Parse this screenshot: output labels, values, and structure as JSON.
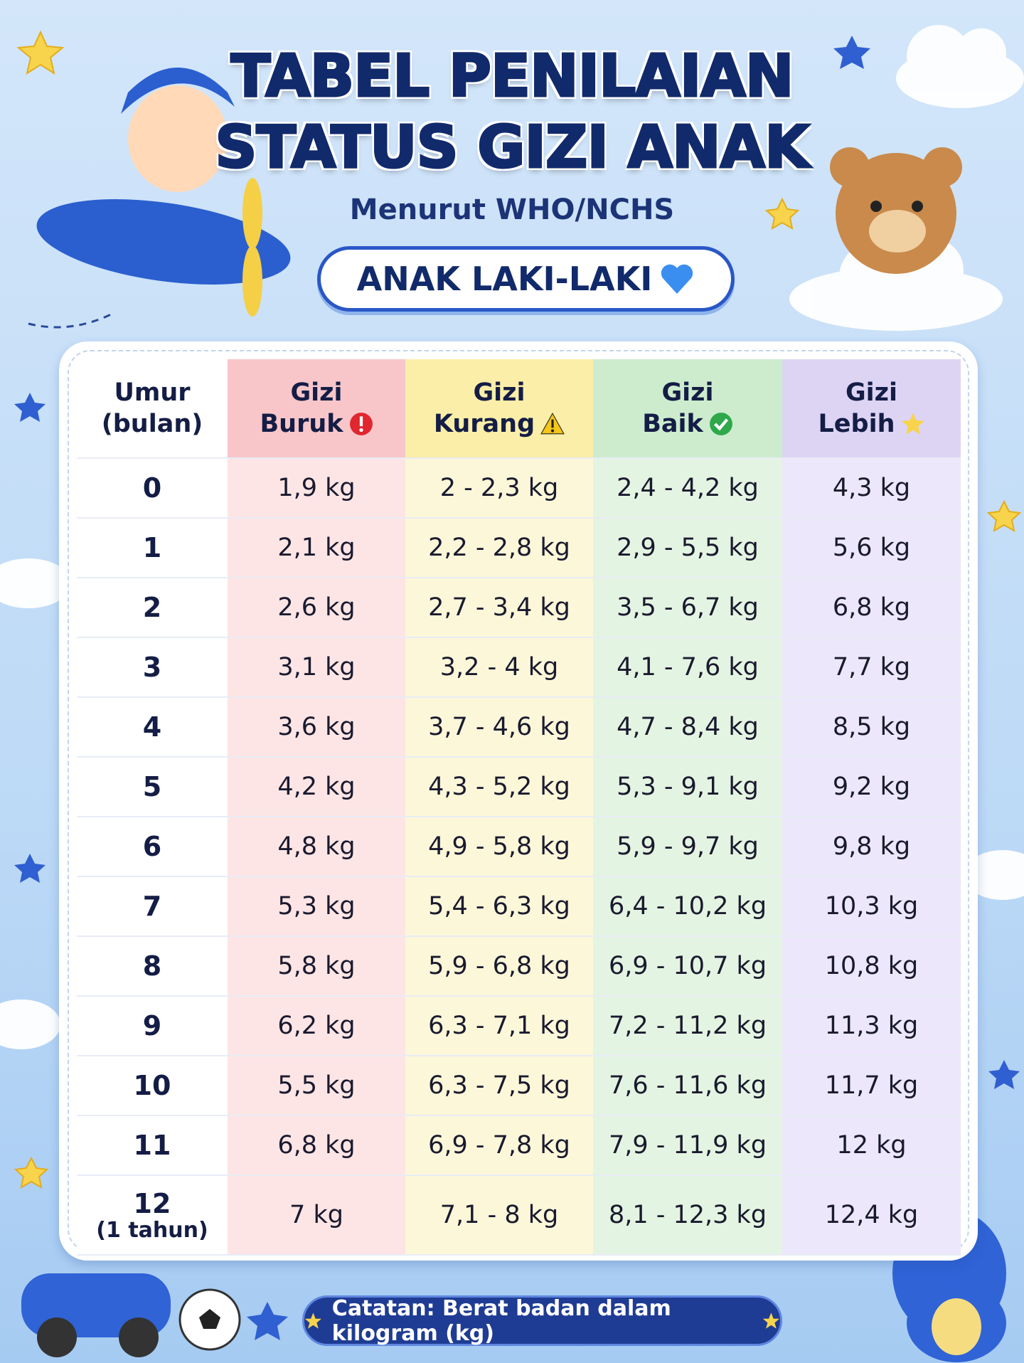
{
  "header": {
    "title_lines": [
      "TABEL PENILAIAN",
      "STATUS GIZI ANAK"
    ],
    "subtitle": "Menurut WHO/NCHS",
    "badge": "ANAK LAKI-LAKI"
  },
  "table": {
    "headers": [
      [
        "Umur",
        "(bulan)"
      ],
      [
        "Gizi",
        "Buruk"
      ],
      [
        "Gizi",
        "Kurang"
      ],
      [
        "Gizi",
        "Baik"
      ],
      [
        "Gizi",
        "Lebih"
      ]
    ],
    "rows": [
      [
        "0",
        "1,9 kg",
        "2 - 2,3 kg",
        "2,4 - 4,2 kg",
        "4,3 kg"
      ],
      [
        "1",
        "2,1 kg",
        "2,2 - 2,8 kg",
        "2,9 - 5,5 kg",
        "5,6 kg"
      ],
      [
        "2",
        "2,6 kg",
        "2,7 - 3,4 kg",
        "3,5 - 6,7 kg",
        "6,8 kg"
      ],
      [
        "3",
        "3,1 kg",
        "3,2 - 4 kg",
        "4,1 - 7,6 kg",
        "7,7 kg"
      ],
      [
        "4",
        "3,6 kg",
        "3,7 - 4,6 kg",
        "4,7 - 8,4 kg",
        "8,5 kg"
      ],
      [
        "5",
        "4,2 kg",
        "4,3 - 5,2 kg",
        "5,3 - 9,1 kg",
        "9,2 kg"
      ],
      [
        "6",
        "4,8 kg",
        "4,9 - 5,8 kg",
        "5,9 - 9,7 kg",
        "9,8 kg"
      ],
      [
        "7",
        "5,3 kg",
        "5,4 - 6,3 kg",
        "6,4 - 10,2 kg",
        "10,3 kg"
      ],
      [
        "8",
        "5,8 kg",
        "5,9 - 6,8 kg",
        "6,9 - 10,7 kg",
        "10,8 kg"
      ],
      [
        "9",
        "6,2 kg",
        "6,3 - 7,1 kg",
        "7,2 - 11,2 kg",
        "11,3 kg"
      ],
      [
        "10",
        "5,5 kg",
        "6,3 - 7,5 kg",
        "7,6 - 11,6 kg",
        "11,7 kg"
      ],
      [
        "11",
        "6,8 kg",
        "6,9 - 7,8 kg",
        "7,9 - 11,9 kg",
        "12 kg"
      ],
      [
        "12",
        "7 kg",
        "7,1 - 8 kg",
        "8,1 - 12,3 kg",
        "12,4 kg"
      ]
    ],
    "last_row_sub": "(1 tahun)"
  },
  "footer": {
    "note": "Catatan: Berat badan dalam kilogram (kg)"
  }
}
